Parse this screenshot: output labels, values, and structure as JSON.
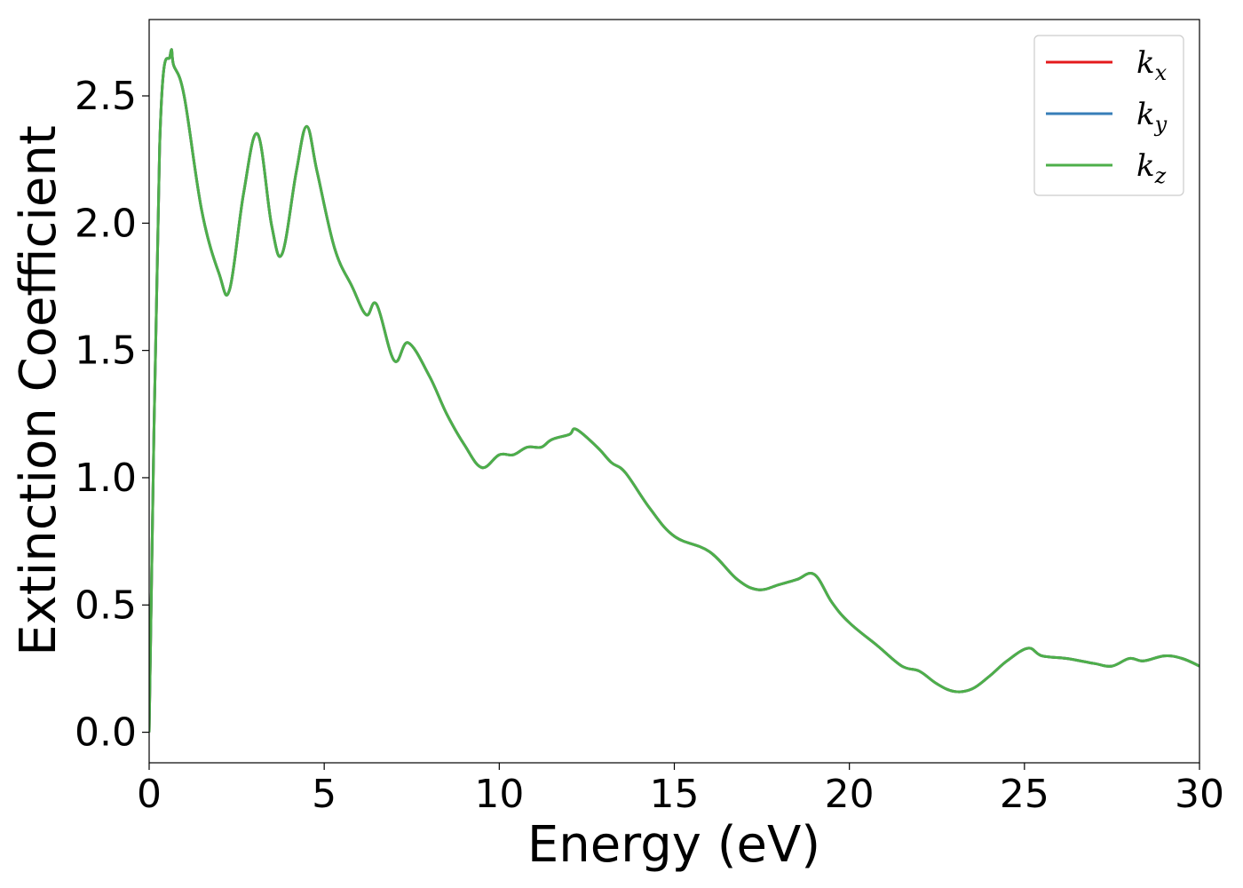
{
  "chart_data": {
    "type": "line",
    "title": "",
    "xlabel": "Energy (eV)",
    "ylabel": "Extinction Coefficient",
    "xlim": [
      0,
      30
    ],
    "ylim": [
      -0.12,
      2.8
    ],
    "xticks": [
      0,
      5,
      10,
      15,
      20,
      25,
      30
    ],
    "xtick_labels": [
      "0",
      "5",
      "10",
      "15",
      "20",
      "25",
      "30"
    ],
    "yticks": [
      0.0,
      0.5,
      1.0,
      1.5,
      2.0,
      2.5
    ],
    "ytick_labels": [
      "0.0",
      "0.5",
      "1.0",
      "1.5",
      "2.0",
      "2.5"
    ],
    "grid": false,
    "legend_position": "top-right",
    "x": [
      0,
      0.3,
      0.6,
      0.7,
      1.0,
      1.5,
      2.0,
      2.3,
      2.7,
      3.1,
      3.5,
      3.8,
      4.2,
      4.5,
      4.8,
      5.3,
      5.8,
      6.2,
      6.5,
      7.0,
      7.4,
      8.0,
      8.5,
      9.0,
      9.5,
      10.0,
      10.4,
      10.8,
      11.2,
      11.5,
      12.0,
      12.2,
      12.8,
      13.2,
      13.6,
      14.3,
      15.0,
      16.0,
      16.8,
      17.4,
      18.0,
      18.5,
      19.0,
      19.5,
      20.0,
      20.8,
      21.5,
      22.0,
      22.5,
      23.0,
      23.5,
      24.0,
      24.5,
      25.1,
      25.5,
      26.2,
      27.0,
      27.5,
      28.0,
      28.4,
      29.0,
      29.5,
      30.0
    ],
    "series": [
      {
        "name": "k_x",
        "label_base": "k",
        "label_sub": "x",
        "color": "#e41a1c",
        "values": [
          0.0,
          2.3,
          2.66,
          2.62,
          2.5,
          2.05,
          1.8,
          1.74,
          2.12,
          2.35,
          1.99,
          1.88,
          2.2,
          2.38,
          2.2,
          1.9,
          1.75,
          1.64,
          1.68,
          1.46,
          1.53,
          1.4,
          1.25,
          1.13,
          1.04,
          1.09,
          1.09,
          1.12,
          1.12,
          1.15,
          1.17,
          1.19,
          1.12,
          1.06,
          1.02,
          0.88,
          0.77,
          0.71,
          0.6,
          0.56,
          0.58,
          0.6,
          0.62,
          0.51,
          0.43,
          0.34,
          0.26,
          0.24,
          0.19,
          0.16,
          0.17,
          0.22,
          0.28,
          0.33,
          0.3,
          0.29,
          0.27,
          0.26,
          0.29,
          0.28,
          0.3,
          0.29,
          0.26
        ]
      },
      {
        "name": "k_y",
        "label_base": "k",
        "label_sub": "y",
        "color": "#377eb8",
        "values": [
          0.0,
          2.3,
          2.66,
          2.62,
          2.5,
          2.05,
          1.8,
          1.74,
          2.12,
          2.35,
          1.99,
          1.88,
          2.2,
          2.38,
          2.2,
          1.9,
          1.75,
          1.64,
          1.68,
          1.46,
          1.53,
          1.4,
          1.25,
          1.13,
          1.04,
          1.09,
          1.09,
          1.12,
          1.12,
          1.15,
          1.17,
          1.19,
          1.12,
          1.06,
          1.02,
          0.88,
          0.77,
          0.71,
          0.6,
          0.56,
          0.58,
          0.6,
          0.62,
          0.51,
          0.43,
          0.34,
          0.26,
          0.24,
          0.19,
          0.16,
          0.17,
          0.22,
          0.28,
          0.33,
          0.3,
          0.29,
          0.27,
          0.26,
          0.29,
          0.28,
          0.3,
          0.29,
          0.26
        ]
      },
      {
        "name": "k_z",
        "label_base": "k",
        "label_sub": "z",
        "color": "#4daf4a",
        "values": [
          0.0,
          2.3,
          2.66,
          2.62,
          2.5,
          2.05,
          1.8,
          1.74,
          2.12,
          2.35,
          1.99,
          1.88,
          2.2,
          2.38,
          2.2,
          1.9,
          1.75,
          1.64,
          1.68,
          1.46,
          1.53,
          1.4,
          1.25,
          1.13,
          1.04,
          1.09,
          1.09,
          1.12,
          1.12,
          1.15,
          1.17,
          1.19,
          1.12,
          1.06,
          1.02,
          0.88,
          0.77,
          0.71,
          0.6,
          0.56,
          0.58,
          0.6,
          0.62,
          0.51,
          0.43,
          0.34,
          0.26,
          0.24,
          0.19,
          0.16,
          0.17,
          0.22,
          0.28,
          0.33,
          0.3,
          0.29,
          0.27,
          0.26,
          0.29,
          0.28,
          0.3,
          0.29,
          0.26
        ]
      }
    ]
  }
}
